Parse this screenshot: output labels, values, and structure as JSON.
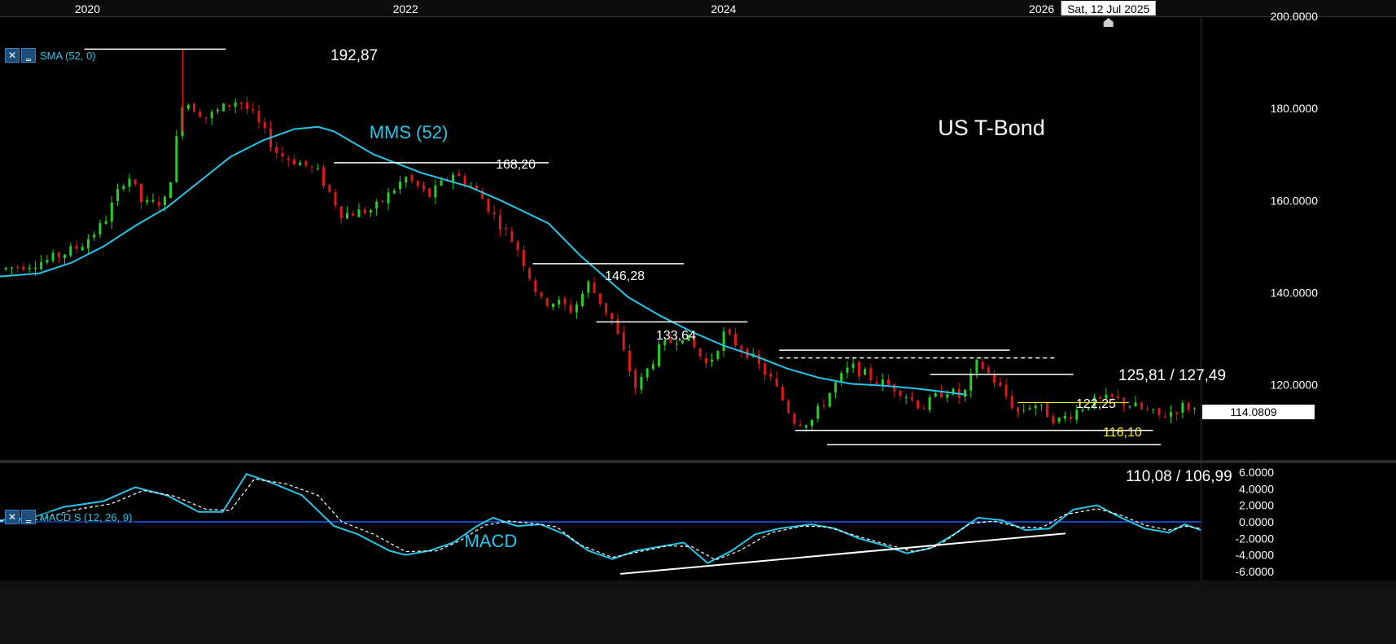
{
  "chart_data": [
    {
      "type": "candlestick",
      "title": "US T-Bond",
      "x_axis": {
        "range": [
          2019.45,
          2027.0
        ],
        "tick_labels": [
          "2020",
          "2022",
          "2024",
          "2026"
        ],
        "crosshair_label": "Sat, 12 Jul 2025"
      },
      "y_axis": {
        "range": [
          104,
          200
        ],
        "tick_labels": [
          "200.0000",
          "180.0000",
          "160.0000",
          "140.0000",
          "120.0000"
        ],
        "last_price": "114.0809",
        "side": "right"
      },
      "legend": "SMA (52, 0)",
      "overlay_label": "MMS (52)",
      "sma_52": [
        [
          2019.45,
          143.5
        ],
        [
          2019.7,
          144.2
        ],
        [
          2019.9,
          146.5
        ],
        [
          2020.1,
          150
        ],
        [
          2020.3,
          154.5
        ],
        [
          2020.5,
          158.5
        ],
        [
          2020.7,
          164
        ],
        [
          2020.9,
          169.5
        ],
        [
          2021.1,
          173
        ],
        [
          2021.3,
          175.5
        ],
        [
          2021.45,
          176
        ],
        [
          2021.55,
          175
        ],
        [
          2021.8,
          170
        ],
        [
          2022.1,
          166
        ],
        [
          2022.4,
          163
        ],
        [
          2022.6,
          160
        ],
        [
          2022.9,
          155
        ],
        [
          2023.1,
          148
        ],
        [
          2023.4,
          139
        ],
        [
          2023.6,
          135
        ],
        [
          2023.8,
          131.5
        ],
        [
          2024.0,
          128.5
        ],
        [
          2024.2,
          126.2
        ],
        [
          2024.4,
          123.5
        ],
        [
          2024.6,
          121.5
        ],
        [
          2024.8,
          120.2
        ],
        [
          2025.0,
          119.8
        ],
        [
          2025.2,
          119.2
        ],
        [
          2025.4,
          118.4
        ],
        [
          2025.53,
          117.8
        ]
      ],
      "price_path": [
        [
          2019.45,
          145
        ],
        [
          2019.75,
          147
        ],
        [
          2019.95,
          150
        ],
        [
          2020.1,
          155
        ],
        [
          2020.25,
          166
        ],
        [
          2020.35,
          159
        ],
        [
          2020.5,
          160
        ],
        [
          2020.6,
          182
        ],
        [
          2020.75,
          178
        ],
        [
          2020.95,
          182
        ],
        [
          2021.05,
          178
        ],
        [
          2021.2,
          170
        ],
        [
          2021.35,
          168
        ],
        [
          2021.45,
          166
        ],
        [
          2021.6,
          157
        ],
        [
          2021.8,
          158
        ],
        [
          2022.0,
          165
        ],
        [
          2022.15,
          161
        ],
        [
          2022.3,
          166
        ],
        [
          2022.45,
          162
        ],
        [
          2022.55,
          157
        ],
        [
          2022.7,
          150
        ],
        [
          2022.85,
          138
        ],
        [
          2022.95,
          138
        ],
        [
          2023.05,
          136
        ],
        [
          2023.15,
          142
        ],
        [
          2023.3,
          134
        ],
        [
          2023.45,
          119
        ],
        [
          2023.6,
          128
        ],
        [
          2023.75,
          131
        ],
        [
          2023.9,
          124
        ],
        [
          2024.0,
          131
        ],
        [
          2024.15,
          127
        ],
        [
          2024.3,
          121
        ],
        [
          2024.45,
          112
        ],
        [
          2024.55,
          112
        ],
        [
          2024.7,
          120
        ],
        [
          2024.8,
          124
        ],
        [
          2024.95,
          121
        ],
        [
          2025.1,
          119
        ],
        [
          2025.25,
          115
        ],
        [
          2025.4,
          119
        ],
        [
          2025.5,
          117
        ],
        [
          2025.6,
          125
        ],
        [
          2025.7,
          121
        ],
        [
          2025.85,
          114
        ],
        [
          2025.95,
          116
        ],
        [
          2026.1,
          112
        ],
        [
          2026.3,
          116
        ],
        [
          2026.45,
          117
        ],
        [
          2026.6,
          115
        ],
        [
          2026.75,
          113
        ],
        [
          2026.9,
          115.5
        ],
        [
          2027.0,
          114.1
        ]
      ],
      "levels": [
        {
          "label": "192,87",
          "value": 192.87,
          "from": 2019.98,
          "to": 2020.87,
          "color": "#ffffff"
        },
        {
          "label": "168,20",
          "value": 168.2,
          "from": 2021.55,
          "to": 2022.9,
          "color": "#ffffff"
        },
        {
          "label": "146,28",
          "value": 146.28,
          "from": 2022.8,
          "to": 2023.75,
          "color": "#ffffff"
        },
        {
          "label": "133,64",
          "value": 133.64,
          "from": 2023.2,
          "to": 2024.15,
          "color": "#ffffff"
        },
        {
          "label": "125,81 / 127,49",
          "value": 127.49,
          "from": 2024.35,
          "to": 2025.8,
          "color": "#ffffff",
          "second_value": 125.81,
          "second_dashed": true
        },
        {
          "label": "122,25",
          "value": 122.25,
          "from": 2025.3,
          "to": 2026.2,
          "color": "#ffffff"
        },
        {
          "label": "116,10",
          "value": 116.1,
          "from": 2025.85,
          "to": 2026.55,
          "color": "#ffee00"
        },
        {
          "label": "110,08 / 106,99",
          "value": 110.08,
          "from": 2024.45,
          "to": 2026.7,
          "color": "#ffffff",
          "second_value": 106.99
        }
      ]
    },
    {
      "type": "line",
      "title": "MACD",
      "legend": "MACD S (12, 26, 9)",
      "y_axis": {
        "range": [
          -7,
          7
        ],
        "tick_labels": [
          "6.0000",
          "4.0000",
          "2.0000",
          "0.0000",
          "-2.0000",
          "-4.0000",
          "-6.0000"
        ],
        "side": "right"
      },
      "series": [
        {
          "name": "MACD",
          "color": "#26c6e8",
          "values": [
            [
              2019.45,
              0.2
            ],
            [
              2019.65,
              0.5
            ],
            [
              2019.85,
              1.8
            ],
            [
              2020.1,
              2.5
            ],
            [
              2020.3,
              4.2
            ],
            [
              2020.5,
              3.2
            ],
            [
              2020.7,
              1.2
            ],
            [
              2020.85,
              1.2
            ],
            [
              2021.0,
              5.8
            ],
            [
              2021.15,
              4.8
            ],
            [
              2021.35,
              3.2
            ],
            [
              2021.55,
              -0.5
            ],
            [
              2021.7,
              -1.5
            ],
            [
              2021.9,
              -3.5
            ],
            [
              2022.0,
              -4.0
            ],
            [
              2022.15,
              -3.5
            ],
            [
              2022.3,
              -2.5
            ],
            [
              2022.45,
              -0.5
            ],
            [
              2022.55,
              0.5
            ],
            [
              2022.7,
              -0.5
            ],
            [
              2022.85,
              -0.3
            ],
            [
              2023.0,
              -1.5
            ],
            [
              2023.15,
              -3.5
            ],
            [
              2023.3,
              -4.5
            ],
            [
              2023.45,
              -3.5
            ],
            [
              2023.6,
              -3.0
            ],
            [
              2023.75,
              -2.5
            ],
            [
              2023.9,
              -5.0
            ],
            [
              2024.05,
              -3.5
            ],
            [
              2024.2,
              -1.5
            ],
            [
              2024.35,
              -0.8
            ],
            [
              2024.55,
              -0.3
            ],
            [
              2024.7,
              -0.8
            ],
            [
              2024.85,
              -2.0
            ],
            [
              2025.0,
              -2.8
            ],
            [
              2025.15,
              -3.8
            ],
            [
              2025.3,
              -3.2
            ],
            [
              2025.45,
              -1.5
            ],
            [
              2025.6,
              0.5
            ],
            [
              2025.75,
              0.2
            ],
            [
              2025.9,
              -1.0
            ],
            [
              2026.05,
              -0.8
            ],
            [
              2026.2,
              1.5
            ],
            [
              2026.35,
              2.0
            ],
            [
              2026.5,
              0.5
            ],
            [
              2026.65,
              -0.8
            ],
            [
              2026.8,
              -1.3
            ],
            [
              2026.9,
              -0.3
            ],
            [
              2027.0,
              -1.0
            ]
          ]
        },
        {
          "name": "Signal",
          "color": "#ffffff",
          "dashed": true,
          "values": [
            [
              2019.45,
              0.1
            ],
            [
              2019.7,
              0.3
            ],
            [
              2019.9,
              1.4
            ],
            [
              2020.15,
              2.2
            ],
            [
              2020.35,
              3.8
            ],
            [
              2020.55,
              3.1
            ],
            [
              2020.75,
              1.5
            ],
            [
              2020.9,
              1.4
            ],
            [
              2021.05,
              5.2
            ],
            [
              2021.25,
              4.6
            ],
            [
              2021.45,
              3.2
            ],
            [
              2021.6,
              0.0
            ],
            [
              2021.8,
              -1.5
            ],
            [
              2022.0,
              -3.6
            ],
            [
              2022.2,
              -3.5
            ],
            [
              2022.35,
              -2.2
            ],
            [
              2022.5,
              -0.4
            ],
            [
              2022.65,
              0.1
            ],
            [
              2022.8,
              -0.2
            ],
            [
              2022.95,
              -0.6
            ],
            [
              2023.1,
              -2.8
            ],
            [
              2023.3,
              -4.3
            ],
            [
              2023.5,
              -3.5
            ],
            [
              2023.65,
              -2.9
            ],
            [
              2023.8,
              -3.0
            ],
            [
              2023.95,
              -4.6
            ],
            [
              2024.1,
              -3.5
            ],
            [
              2024.3,
              -1.3
            ],
            [
              2024.5,
              -0.5
            ],
            [
              2024.65,
              -0.6
            ],
            [
              2024.8,
              -1.5
            ],
            [
              2025.0,
              -2.6
            ],
            [
              2025.2,
              -3.6
            ],
            [
              2025.35,
              -2.9
            ],
            [
              2025.55,
              -0.2
            ],
            [
              2025.7,
              0.1
            ],
            [
              2025.85,
              -0.6
            ],
            [
              2026.0,
              -0.7
            ],
            [
              2026.15,
              0.9
            ],
            [
              2026.35,
              1.6
            ],
            [
              2026.5,
              0.8
            ],
            [
              2026.65,
              -0.4
            ],
            [
              2026.8,
              -1.0
            ],
            [
              2026.9,
              -0.5
            ],
            [
              2027.0,
              -0.8
            ]
          ]
        }
      ],
      "trendline": [
        [
          2023.35,
          -6.3
        ],
        [
          2026.15,
          -1.4
        ]
      ]
    }
  ]
}
